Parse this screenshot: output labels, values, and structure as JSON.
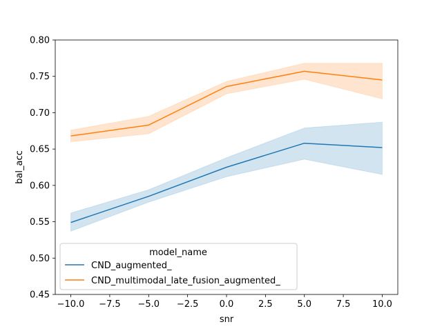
{
  "chart_data": {
    "type": "line",
    "xlabel": "snr",
    "ylabel": "bal_acc",
    "xlim": [
      -11,
      11
    ],
    "ylim": [
      0.45,
      0.8
    ],
    "x_ticks": [
      -10.0,
      -7.5,
      -5.0,
      -2.5,
      0.0,
      2.5,
      5.0,
      7.5,
      10.0
    ],
    "x_tick_labels": [
      "−10.0",
      "−7.5",
      "−5.0",
      "−2.5",
      "0.0",
      "2.5",
      "5.0",
      "7.5",
      "10.0"
    ],
    "y_ticks": [
      0.45,
      0.5,
      0.55,
      0.6,
      0.65,
      0.7,
      0.75,
      0.8
    ],
    "y_tick_labels": [
      "0.45",
      "0.50",
      "0.55",
      "0.60",
      "0.65",
      "0.70",
      "0.75",
      "0.80"
    ],
    "grid": false,
    "legend": {
      "title": "model_name",
      "placement": "lower-left"
    },
    "x": [
      -10,
      -5,
      0,
      5,
      10
    ],
    "series": [
      {
        "name": "CND_augmented_",
        "color": "#1f77b4",
        "values": [
          0.549,
          0.585,
          0.625,
          0.658,
          0.652
        ],
        "ci_lower": [
          0.537,
          0.577,
          0.612,
          0.636,
          0.615
        ],
        "ci_upper": [
          0.562,
          0.594,
          0.638,
          0.679,
          0.687
        ]
      },
      {
        "name": "CND_multimodal_late_fusion_augmented_",
        "color": "#ff7f0e",
        "values": [
          0.668,
          0.683,
          0.736,
          0.757,
          0.745
        ],
        "ci_lower": [
          0.66,
          0.671,
          0.726,
          0.746,
          0.719
        ],
        "ci_upper": [
          0.676,
          0.695,
          0.743,
          0.768,
          0.768
        ]
      }
    ]
  }
}
